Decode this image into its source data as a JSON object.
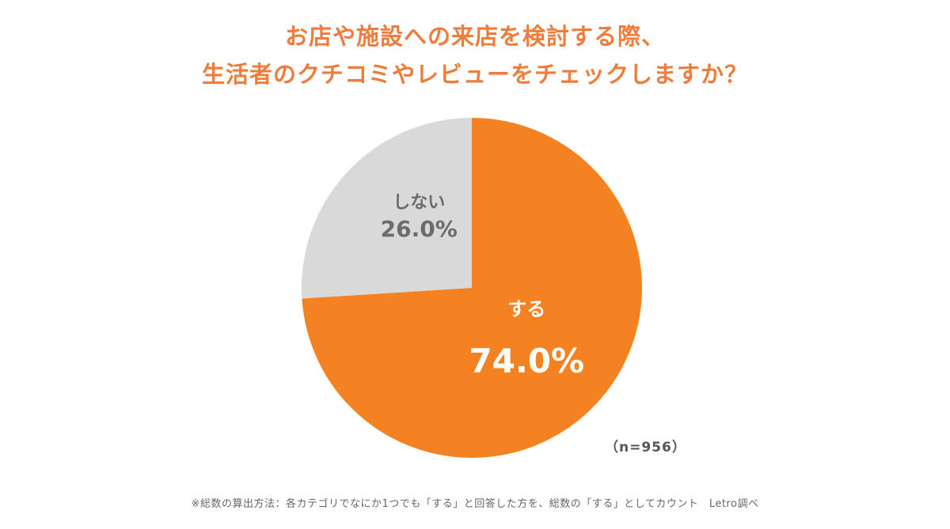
{
  "title_lines": [
    "お店や施設への来店を検討する際、",
    "生活者のクチコミやレビューをチェックしますか？"
  ],
  "sample_size_label": "（n=956）",
  "footnote": "※総数の算出方法：各カテゴリでなにか1つでも「する」と回答した方を、総数の「する」としてカウント　Letro調べ",
  "colors": {
    "title": "#ee7d3c",
    "slice_yes": "#f58220",
    "slice_no": "#d9d9d9",
    "label_yes": "#ffffff",
    "label_no": "#6b6b6b"
  },
  "chart_data": {
    "type": "pie",
    "title": "お店や施設への来店を検討する際、生活者のクチコミやレビューをチェックしますか？",
    "slices": [
      {
        "name": "する",
        "value": 74.0,
        "label": "74.0%"
      },
      {
        "name": "しない",
        "value": 26.0,
        "label": "26.0%"
      }
    ],
    "start_angle": "12 o'clock",
    "direction": "clockwise",
    "legend": "none (labels inside slices)"
  }
}
